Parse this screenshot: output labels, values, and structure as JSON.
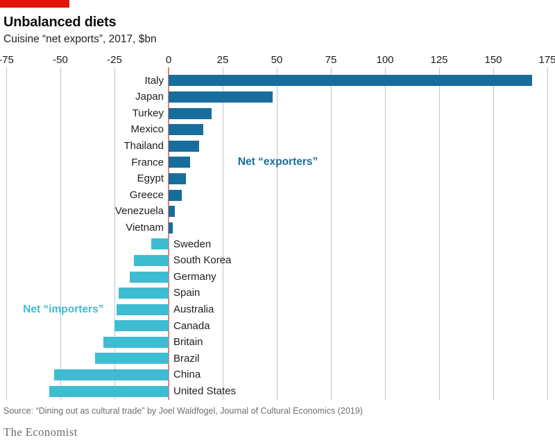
{
  "accent_color": "#e3120b",
  "header": {
    "title": "Unbalanced diets",
    "subtitle": "Cuisine “net exports”, 2017, $bn"
  },
  "chart_data": {
    "type": "bar",
    "orientation": "horizontal",
    "title": "Unbalanced diets",
    "subtitle": "Cuisine “net exports”, 2017, $bn",
    "xlabel": "",
    "ylabel": "",
    "xlim": [
      -75,
      175
    ],
    "xticks": [
      -75,
      -50,
      -25,
      0,
      25,
      50,
      75,
      100,
      125,
      150,
      175
    ],
    "grid": true,
    "categories": [
      "Italy",
      "Japan",
      "Turkey",
      "Mexico",
      "Thailand",
      "France",
      "Egypt",
      "Greece",
      "Venezuela",
      "Vietnam",
      "Sweden",
      "South Korea",
      "Germany",
      "Spain",
      "Australia",
      "Canada",
      "Britain",
      "Brazil",
      "China",
      "United States"
    ],
    "values": [
      168,
      48,
      20,
      16,
      14,
      10,
      8,
      6,
      3,
      2,
      -8,
      -16,
      -18,
      -23,
      -24,
      -25,
      -30,
      -34,
      -53,
      -55
    ],
    "colors": {
      "positive": "#176d9c",
      "negative": "#3ebcd2",
      "zero_line": "#f07d72",
      "gridline": "#b5c7d4"
    },
    "annotations": [
      {
        "text": "Net “exporters”",
        "color": "#176d9c",
        "x_pct": 42.8,
        "y_row": 5.5
      },
      {
        "text": "Net “importers”",
        "color": "#3ebcd2",
        "x_pct": 3.1,
        "y_row": 14.5
      }
    ]
  },
  "footer": {
    "source": "Source: “Dining out as cultural trade” by Joel Waldfogel, Journal of Cultural Economics (2019)",
    "wordmark": "The Economist"
  }
}
